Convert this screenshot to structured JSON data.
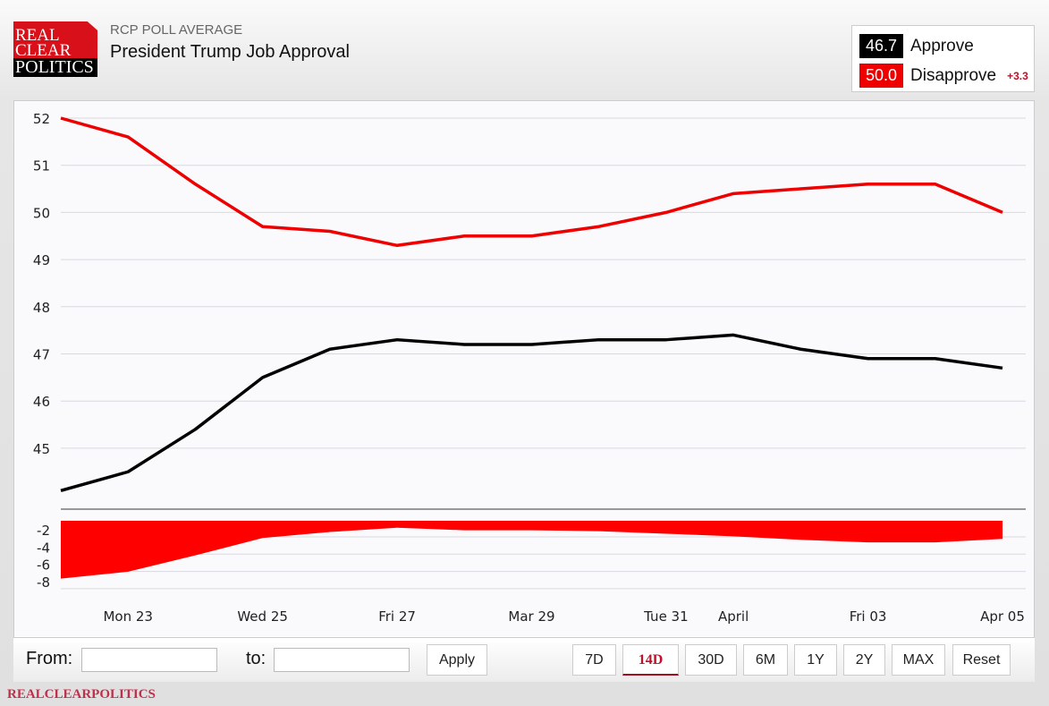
{
  "header": {
    "logo_text": [
      "REAL",
      "CLEAR",
      "POLITICS"
    ],
    "subtitle": "RCP POLL AVERAGE",
    "title": "President Trump Job Approval"
  },
  "legend": {
    "approve": {
      "value": "46.7",
      "label": "Approve",
      "color": "#000000"
    },
    "disapprove": {
      "value": "50.0",
      "label": "Disapprove",
      "color": "#ee0000"
    },
    "spread": "+3.3"
  },
  "chart_data": [
    {
      "type": "line",
      "x": [
        "Mar 22",
        "Mar 23",
        "Mar 24",
        "Mar 25",
        "Mar 26",
        "Mar 27",
        "Mar 28",
        "Mar 29",
        "Mar 30",
        "Mar 31",
        "Apr 01",
        "Apr 02",
        "Apr 03",
        "Apr 04",
        "Apr 05"
      ],
      "series": [
        {
          "name": "Approve",
          "color": "#000000",
          "values": [
            44.1,
            44.5,
            45.4,
            46.5,
            47.1,
            47.3,
            47.2,
            47.2,
            47.3,
            47.3,
            47.4,
            47.1,
            46.9,
            46.9,
            46.7
          ]
        },
        {
          "name": "Disapprove",
          "color": "#ee0000",
          "values": [
            52.0,
            51.6,
            50.6,
            49.7,
            49.6,
            49.3,
            49.5,
            49.5,
            49.7,
            50.0,
            50.4,
            50.5,
            50.6,
            50.6,
            50.0
          ]
        }
      ],
      "yticks": [
        "45",
        "46",
        "47",
        "48",
        "49",
        "50",
        "51",
        "52"
      ],
      "ylim": [
        43.7,
        52.3
      ],
      "grid": true
    },
    {
      "type": "area",
      "x": [
        "Mar 22",
        "Mar 23",
        "Mar 24",
        "Mar 25",
        "Mar 26",
        "Mar 27",
        "Mar 28",
        "Mar 29",
        "Mar 30",
        "Mar 31",
        "Apr 01",
        "Apr 02",
        "Apr 03",
        "Apr 04",
        "Apr 05"
      ],
      "values": [
        -7.9,
        -7.1,
        -5.2,
        -3.2,
        -2.5,
        -2.0,
        -2.3,
        -2.3,
        -2.4,
        -2.7,
        -3.0,
        -3.4,
        -3.7,
        -3.7,
        -3.3
      ],
      "color": "#ff0000",
      "yticks": [
        "-2",
        "-4",
        "-6",
        "-8"
      ],
      "ylim": [
        -9,
        -1
      ],
      "grid": true,
      "xticks": [
        {
          "x": "Mar 23",
          "label": "Mon 23"
        },
        {
          "x": "Mar 25",
          "label": "Wed 25"
        },
        {
          "x": "Mar 27",
          "label": "Fri 27"
        },
        {
          "x": "Mar 29",
          "label": "Mar 29"
        },
        {
          "x": "Mar 31",
          "label": "Tue 31"
        },
        {
          "x": "Apr 01",
          "label": "April"
        },
        {
          "x": "Apr 03",
          "label": "Fri 03"
        },
        {
          "x": "Apr 05",
          "label": "Apr 05"
        }
      ]
    }
  ],
  "controls": {
    "from_label": "From:",
    "to_label": "to:",
    "from_value": "",
    "to_value": "",
    "apply": "Apply",
    "ranges": [
      "7D",
      "14D",
      "30D",
      "6M",
      "1Y",
      "2Y",
      "MAX",
      "Reset"
    ],
    "active_range": "14D"
  },
  "footer": "REALCLEARPOLITICS"
}
